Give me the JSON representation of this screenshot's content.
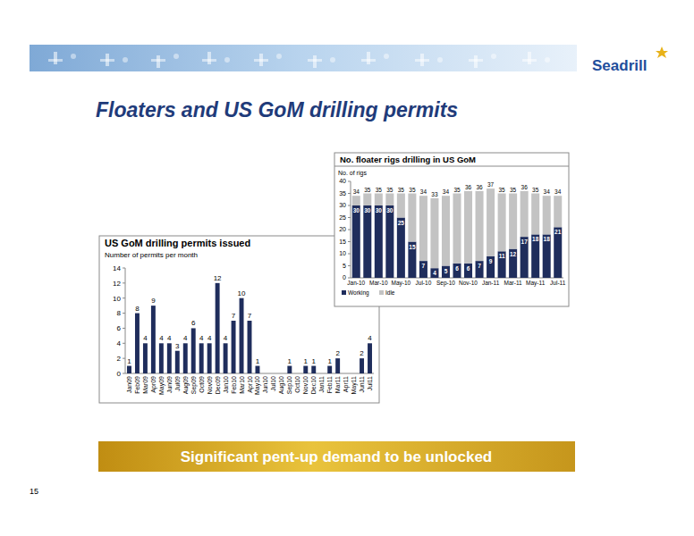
{
  "header": {
    "logo": "Seadrill",
    "title": "Floaters and US GoM drilling permits"
  },
  "chart_data": [
    {
      "type": "bar",
      "title": "US GoM drilling permits issued",
      "subtitle": "Number of permits per month",
      "categories": [
        "Jan09",
        "Feb09",
        "Mar09",
        "Apr09",
        "May09",
        "Jun09",
        "Jul09",
        "Aug09",
        "Sep09",
        "Oct09",
        "Nov09",
        "Dec09",
        "Jan10",
        "Feb10",
        "Mar10",
        "Apr10",
        "May10",
        "Jun10",
        "Jul10",
        "Aug10",
        "Sep10",
        "Oct10",
        "Nov10",
        "Dec10",
        "Jan11",
        "Feb11",
        "Mar11",
        "Apr11",
        "May11",
        "Jun11",
        "Jul11"
      ],
      "values": [
        1,
        8,
        4,
        9,
        4,
        4,
        3,
        4,
        6,
        4,
        4,
        12,
        4,
        7,
        10,
        7,
        1,
        0,
        0,
        0,
        1,
        0,
        1,
        1,
        0,
        1,
        2,
        0,
        0,
        2,
        4
      ],
      "color": "#1f2d5c",
      "ylim": [
        0,
        14
      ],
      "yticks": [
        0,
        2,
        4,
        6,
        8,
        10,
        12,
        14
      ],
      "data_labels": true,
      "grid": false
    },
    {
      "type": "bar",
      "stacked": true,
      "title": "No. floater rigs drilling in US GoM",
      "ylabel": "No. of rigs",
      "categories": [
        "Jan-10",
        null,
        "Mar-10",
        null,
        "May-10",
        null,
        "Jul-10",
        null,
        "Sep-10",
        null,
        "Nov-10",
        null,
        "Jan-11",
        null,
        "Mar-11",
        null,
        "May-11",
        null,
        "Jul-11"
      ],
      "series": [
        {
          "name": "Working",
          "color": "#1f2d5c",
          "values": [
            30,
            30,
            30,
            30,
            25,
            15,
            7,
            4,
            5,
            6,
            6,
            7,
            9,
            11,
            12,
            17,
            18,
            18,
            21
          ]
        },
        {
          "name": "Idle",
          "color": "#c3c3c3",
          "values": [
            4,
            5,
            5,
            5,
            10,
            20,
            27,
            29,
            29,
            29,
            30,
            29,
            28,
            24,
            23,
            19,
            17,
            16,
            13
          ]
        }
      ],
      "totals": [
        34,
        35,
        35,
        35,
        35,
        35,
        34,
        33,
        34,
        35,
        36,
        36,
        37,
        35,
        35,
        36,
        35,
        34,
        34
      ],
      "ylim": [
        0,
        40
      ],
      "yticks": [
        0,
        5,
        10,
        15,
        20,
        25,
        30,
        35,
        40
      ],
      "data_labels": true,
      "legend": "bottom-left",
      "grid": false
    }
  ],
  "footer": {
    "banner": "Significant pent-up demand to be unlocked",
    "page": 15
  }
}
